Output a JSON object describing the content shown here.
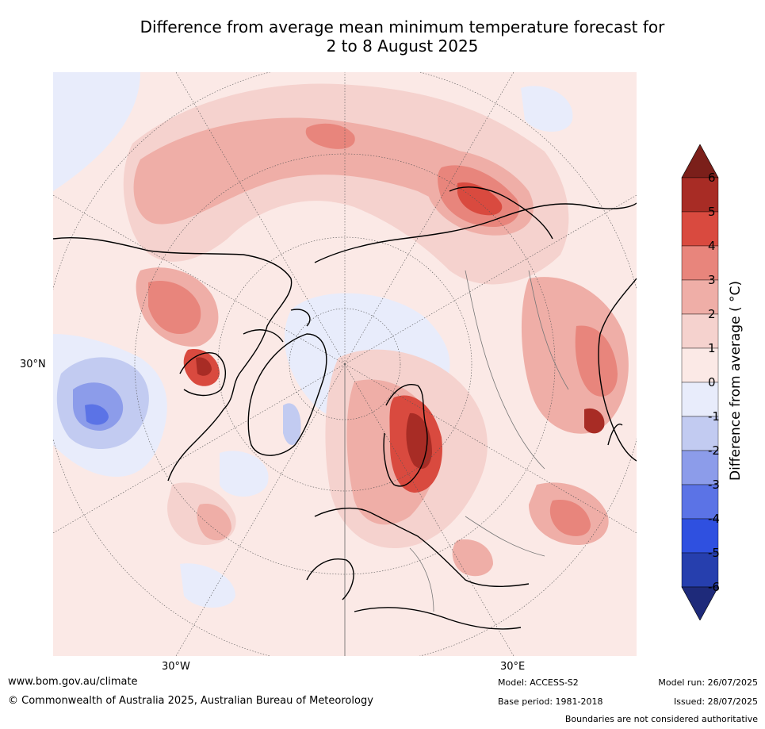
{
  "title": {
    "line1": "Difference from average mean minimum temperature forecast for",
    "line2": "2 to 8 August 2025"
  },
  "map": {
    "lat_labels": [
      "30°N"
    ],
    "lon_labels": [
      "30°W",
      "30°E"
    ]
  },
  "legend": {
    "title": "Difference from average ( °C)",
    "ticks": [
      "6",
      "5",
      "4",
      "3",
      "2",
      "1",
      "0",
      "-1",
      "-2",
      "-3",
      "-4",
      "-5",
      "-6"
    ],
    "colors": [
      "#7b1f1a",
      "#a82c25",
      "#d94a3f",
      "#e8857c",
      "#efaea7",
      "#f5d2ce",
      "#fbe9e6",
      "#e8ecfb",
      "#c2cbf1",
      "#8c9cea",
      "#5b73e6",
      "#2f50e0",
      "#263fae",
      "#1e2a7a"
    ]
  },
  "footer": {
    "website": "www.bom.gov.au/climate",
    "copyright": "© Commonwealth of Australia 2025, Australian Bureau of Meteorology",
    "model": "Model: ACCESS-S2",
    "base_period": "Base period: 1981-2018",
    "model_run": "Model run: 26/07/2025",
    "issued": "Issued: 28/07/2025",
    "disclaimer": "Boundaries are not considered authoritative"
  }
}
